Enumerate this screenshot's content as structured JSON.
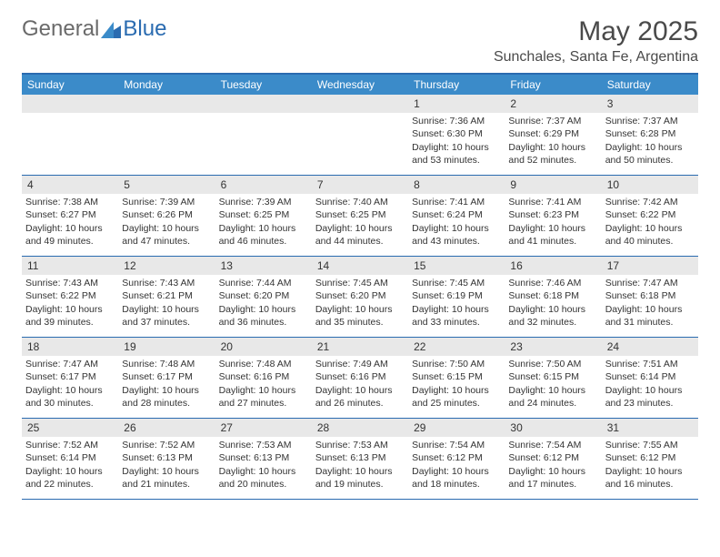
{
  "brand": {
    "general": "General",
    "blue": "Blue"
  },
  "title": "May 2025",
  "location": "Sunchales, Santa Fe, Argentina",
  "colors": {
    "header_bg": "#3b8bc9",
    "border": "#2a6bb0",
    "daynum_bg": "#e8e8e8",
    "text": "#333333",
    "logo_gray": "#6a6a6a",
    "logo_blue": "#2a6bb0",
    "brand_icon": "#2a6bb0"
  },
  "weekdays": [
    "Sunday",
    "Monday",
    "Tuesday",
    "Wednesday",
    "Thursday",
    "Friday",
    "Saturday"
  ],
  "weeks": [
    [
      null,
      null,
      null,
      null,
      {
        "n": "1",
        "sr": "Sunrise: 7:36 AM",
        "ss": "Sunset: 6:30 PM",
        "d1": "Daylight: 10 hours",
        "d2": "and 53 minutes."
      },
      {
        "n": "2",
        "sr": "Sunrise: 7:37 AM",
        "ss": "Sunset: 6:29 PM",
        "d1": "Daylight: 10 hours",
        "d2": "and 52 minutes."
      },
      {
        "n": "3",
        "sr": "Sunrise: 7:37 AM",
        "ss": "Sunset: 6:28 PM",
        "d1": "Daylight: 10 hours",
        "d2": "and 50 minutes."
      }
    ],
    [
      {
        "n": "4",
        "sr": "Sunrise: 7:38 AM",
        "ss": "Sunset: 6:27 PM",
        "d1": "Daylight: 10 hours",
        "d2": "and 49 minutes."
      },
      {
        "n": "5",
        "sr": "Sunrise: 7:39 AM",
        "ss": "Sunset: 6:26 PM",
        "d1": "Daylight: 10 hours",
        "d2": "and 47 minutes."
      },
      {
        "n": "6",
        "sr": "Sunrise: 7:39 AM",
        "ss": "Sunset: 6:25 PM",
        "d1": "Daylight: 10 hours",
        "d2": "and 46 minutes."
      },
      {
        "n": "7",
        "sr": "Sunrise: 7:40 AM",
        "ss": "Sunset: 6:25 PM",
        "d1": "Daylight: 10 hours",
        "d2": "and 44 minutes."
      },
      {
        "n": "8",
        "sr": "Sunrise: 7:41 AM",
        "ss": "Sunset: 6:24 PM",
        "d1": "Daylight: 10 hours",
        "d2": "and 43 minutes."
      },
      {
        "n": "9",
        "sr": "Sunrise: 7:41 AM",
        "ss": "Sunset: 6:23 PM",
        "d1": "Daylight: 10 hours",
        "d2": "and 41 minutes."
      },
      {
        "n": "10",
        "sr": "Sunrise: 7:42 AM",
        "ss": "Sunset: 6:22 PM",
        "d1": "Daylight: 10 hours",
        "d2": "and 40 minutes."
      }
    ],
    [
      {
        "n": "11",
        "sr": "Sunrise: 7:43 AM",
        "ss": "Sunset: 6:22 PM",
        "d1": "Daylight: 10 hours",
        "d2": "and 39 minutes."
      },
      {
        "n": "12",
        "sr": "Sunrise: 7:43 AM",
        "ss": "Sunset: 6:21 PM",
        "d1": "Daylight: 10 hours",
        "d2": "and 37 minutes."
      },
      {
        "n": "13",
        "sr": "Sunrise: 7:44 AM",
        "ss": "Sunset: 6:20 PM",
        "d1": "Daylight: 10 hours",
        "d2": "and 36 minutes."
      },
      {
        "n": "14",
        "sr": "Sunrise: 7:45 AM",
        "ss": "Sunset: 6:20 PM",
        "d1": "Daylight: 10 hours",
        "d2": "and 35 minutes."
      },
      {
        "n": "15",
        "sr": "Sunrise: 7:45 AM",
        "ss": "Sunset: 6:19 PM",
        "d1": "Daylight: 10 hours",
        "d2": "and 33 minutes."
      },
      {
        "n": "16",
        "sr": "Sunrise: 7:46 AM",
        "ss": "Sunset: 6:18 PM",
        "d1": "Daylight: 10 hours",
        "d2": "and 32 minutes."
      },
      {
        "n": "17",
        "sr": "Sunrise: 7:47 AM",
        "ss": "Sunset: 6:18 PM",
        "d1": "Daylight: 10 hours",
        "d2": "and 31 minutes."
      }
    ],
    [
      {
        "n": "18",
        "sr": "Sunrise: 7:47 AM",
        "ss": "Sunset: 6:17 PM",
        "d1": "Daylight: 10 hours",
        "d2": "and 30 minutes."
      },
      {
        "n": "19",
        "sr": "Sunrise: 7:48 AM",
        "ss": "Sunset: 6:17 PM",
        "d1": "Daylight: 10 hours",
        "d2": "and 28 minutes."
      },
      {
        "n": "20",
        "sr": "Sunrise: 7:48 AM",
        "ss": "Sunset: 6:16 PM",
        "d1": "Daylight: 10 hours",
        "d2": "and 27 minutes."
      },
      {
        "n": "21",
        "sr": "Sunrise: 7:49 AM",
        "ss": "Sunset: 6:16 PM",
        "d1": "Daylight: 10 hours",
        "d2": "and 26 minutes."
      },
      {
        "n": "22",
        "sr": "Sunrise: 7:50 AM",
        "ss": "Sunset: 6:15 PM",
        "d1": "Daylight: 10 hours",
        "d2": "and 25 minutes."
      },
      {
        "n": "23",
        "sr": "Sunrise: 7:50 AM",
        "ss": "Sunset: 6:15 PM",
        "d1": "Daylight: 10 hours",
        "d2": "and 24 minutes."
      },
      {
        "n": "24",
        "sr": "Sunrise: 7:51 AM",
        "ss": "Sunset: 6:14 PM",
        "d1": "Daylight: 10 hours",
        "d2": "and 23 minutes."
      }
    ],
    [
      {
        "n": "25",
        "sr": "Sunrise: 7:52 AM",
        "ss": "Sunset: 6:14 PM",
        "d1": "Daylight: 10 hours",
        "d2": "and 22 minutes."
      },
      {
        "n": "26",
        "sr": "Sunrise: 7:52 AM",
        "ss": "Sunset: 6:13 PM",
        "d1": "Daylight: 10 hours",
        "d2": "and 21 minutes."
      },
      {
        "n": "27",
        "sr": "Sunrise: 7:53 AM",
        "ss": "Sunset: 6:13 PM",
        "d1": "Daylight: 10 hours",
        "d2": "and 20 minutes."
      },
      {
        "n": "28",
        "sr": "Sunrise: 7:53 AM",
        "ss": "Sunset: 6:13 PM",
        "d1": "Daylight: 10 hours",
        "d2": "and 19 minutes."
      },
      {
        "n": "29",
        "sr": "Sunrise: 7:54 AM",
        "ss": "Sunset: 6:12 PM",
        "d1": "Daylight: 10 hours",
        "d2": "and 18 minutes."
      },
      {
        "n": "30",
        "sr": "Sunrise: 7:54 AM",
        "ss": "Sunset: 6:12 PM",
        "d1": "Daylight: 10 hours",
        "d2": "and 17 minutes."
      },
      {
        "n": "31",
        "sr": "Sunrise: 7:55 AM",
        "ss": "Sunset: 6:12 PM",
        "d1": "Daylight: 10 hours",
        "d2": "and 16 minutes."
      }
    ]
  ]
}
